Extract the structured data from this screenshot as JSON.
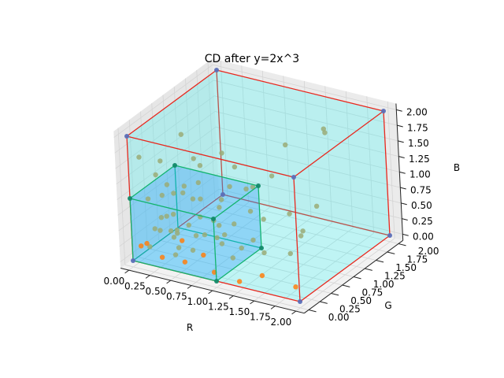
{
  "chart_data": {
    "type": "scatter3d",
    "title": "CD after y=2x^3",
    "xlabel": "R",
    "ylabel": "G",
    "zlabel": "B",
    "xlim": [
      0,
      2
    ],
    "ylim": [
      0,
      2
    ],
    "zlim": [
      0,
      2
    ],
    "ticks": {
      "x": [
        "0.00",
        "0.25",
        "0.50",
        "0.75",
        "1.00",
        "1.25",
        "1.50",
        "1.75",
        "2.00"
      ],
      "y": [
        "0.00",
        "0.25",
        "0.50",
        "0.75",
        "1.00",
        "1.25",
        "1.50",
        "1.75",
        "2.00"
      ],
      "z": [
        "0.00",
        "0.25",
        "0.50",
        "0.75",
        "1.00",
        "1.25",
        "1.50",
        "1.75",
        "2.00"
      ]
    },
    "grid": true,
    "boxes": [
      {
        "name": "",
        "min": [
          0,
          0,
          0
        ],
        "max": [
          2,
          2,
          2
        ],
        "face_color": "#00ffff",
        "edge_color": "#e8281e"
      },
      {
        "name": "",
        "min": [
          0,
          0,
          0
        ],
        "max": [
          1,
          1,
          1
        ],
        "face_color": "#1e90ff",
        "edge_color": "#12b46e"
      }
    ],
    "corner_points": [
      [
        0,
        0,
        0
      ],
      [
        2,
        0,
        0
      ],
      [
        0,
        2,
        0
      ],
      [
        2,
        2,
        0
      ],
      [
        0,
        0,
        2
      ],
      [
        2,
        0,
        2
      ],
      [
        0,
        2,
        2
      ],
      [
        2,
        2,
        2
      ],
      [
        0,
        0,
        1
      ],
      [
        1,
        0,
        0
      ],
      [
        1,
        0,
        1
      ],
      [
        1,
        1,
        0
      ],
      [
        1,
        1,
        1
      ],
      [
        0,
        1,
        1
      ]
    ],
    "scatter": [
      [
        0.05,
        0.1,
        0.2
      ],
      [
        0.1,
        0.2,
        0.15
      ],
      [
        0.15,
        0.05,
        0.3
      ],
      [
        0.3,
        0.1,
        0.1
      ],
      [
        0.45,
        0.2,
        0.25
      ],
      [
        0.6,
        0.05,
        0.15
      ],
      [
        0.8,
        0.1,
        0.3
      ],
      [
        0.95,
        0.05,
        0.1
      ],
      [
        0.2,
        0.3,
        0.6
      ],
      [
        0.35,
        0.15,
        0.75
      ],
      [
        0.5,
        0.35,
        0.55
      ],
      [
        0.7,
        0.25,
        0.8
      ],
      [
        0.25,
        0.5,
        0.9
      ],
      [
        0.1,
        0.4,
        1.2
      ],
      [
        0.05,
        0.6,
        1.3
      ],
      [
        0.15,
        0.9,
        1.6
      ],
      [
        0.4,
        0.7,
        1.4
      ],
      [
        0.2,
        0.15,
        0.5
      ],
      [
        0.55,
        0.1,
        0.45
      ],
      [
        0.3,
        0.45,
        0.3
      ],
      [
        0.75,
        0.6,
        0.2
      ],
      [
        0.9,
        0.4,
        0.5
      ],
      [
        1.1,
        0.2,
        0.3
      ],
      [
        1.3,
        0.3,
        0.6
      ],
      [
        1.5,
        0.1,
        0.2
      ],
      [
        1.2,
        0.7,
        0.15
      ],
      [
        0.6,
        0.9,
        0.7
      ],
      [
        0.85,
        1.0,
        0.9
      ],
      [
        0.4,
        1.2,
        0.35
      ],
      [
        0.65,
        1.5,
        0.6
      ],
      [
        1.0,
        1.3,
        1.0
      ],
      [
        1.4,
        1.2,
        0.3
      ],
      [
        1.6,
        0.8,
        0.5
      ],
      [
        1.5,
        1.6,
        1.7
      ],
      [
        0.2,
        1.8,
        0.3
      ],
      [
        0.35,
        1.4,
        1.1
      ],
      [
        0.1,
        1.0,
        0.7
      ],
      [
        0.5,
        0.6,
        1.1
      ],
      [
        0.7,
        0.3,
        1.6
      ],
      [
        0.25,
        0.25,
        1.0
      ],
      [
        0.45,
        0.5,
        0.05
      ],
      [
        0.9,
        0.75,
        0.1
      ],
      [
        1.1,
        0.9,
        0.55
      ],
      [
        0.15,
        0.65,
        0.45
      ],
      [
        0.6,
        0.45,
        0.95
      ],
      [
        0.3,
        0.85,
        0.05
      ],
      [
        0.8,
        0.15,
        0.6
      ],
      [
        1.25,
        0.05,
        0.05
      ],
      [
        0.05,
        0.3,
        0.85
      ],
      [
        0.5,
        1.0,
        0.2
      ],
      [
        1.7,
        0.4,
        1.1
      ],
      [
        1.8,
        0.2,
        0.6
      ],
      [
        1.3,
        1.7,
        0.4
      ],
      [
        0.9,
        1.8,
        1.2
      ],
      [
        1.6,
        1.4,
        1.9
      ],
      [
        0.4,
        0.1,
        1.3
      ],
      [
        0.1,
        0.8,
        0.1
      ],
      [
        0.75,
        0.5,
        0.35
      ],
      [
        1.05,
        0.35,
        0.75
      ],
      [
        0.2,
        0.55,
        0.15
      ],
      [
        0.55,
        0.8,
        0.4
      ],
      [
        0.35,
        0.3,
        0.05
      ],
      [
        0.65,
        0.2,
        1.1
      ],
      [
        0.05,
        0.15,
        1.6
      ],
      [
        1.9,
        0.1,
        0.15
      ],
      [
        1.2,
        0.45,
        0.95
      ],
      [
        0.95,
        0.6,
        1.5
      ],
      [
        0.15,
        0.35,
        0.35
      ],
      [
        0.45,
        0.05,
        0.6
      ],
      [
        0.25,
        0.7,
        0.8
      ]
    ]
  }
}
